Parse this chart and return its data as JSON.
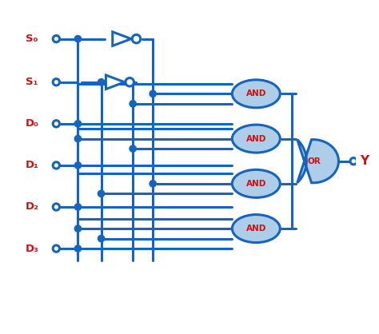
{
  "bg_color": "#ffffff",
  "line_color": "#1565c0",
  "label_color": "#cc1111",
  "gate_fill": "#aecde8",
  "gate_edge": "#1565c0",
  "line_width": 2.2,
  "and_label": "AND",
  "or_label": "OR",
  "output_label": "Y",
  "input_labels": [
    "S₀",
    "S₁",
    "D₀",
    "D₁",
    "D₂",
    "D₃"
  ],
  "figw": 4.74,
  "figh": 4.18,
  "dpi": 100
}
